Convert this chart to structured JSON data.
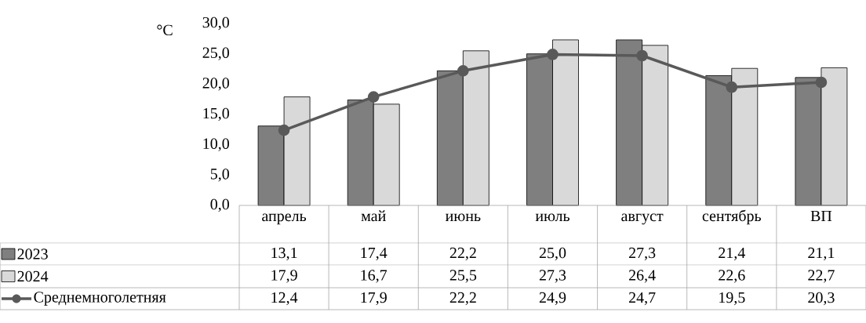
{
  "chart_data": {
    "type": "bar",
    "ylabel": "°C",
    "categories": [
      "апрель",
      "май",
      "июнь",
      "июль",
      "август",
      "сентябрь",
      "ВП"
    ],
    "series": [
      {
        "name": "2023",
        "color": "#7f7f7f",
        "values": [
          13.1,
          17.4,
          22.2,
          25.0,
          27.3,
          21.4,
          21.1
        ],
        "value_labels": [
          "13,1",
          "17,4",
          "22,2",
          "25,0",
          "27,3",
          "21,4",
          "21,1"
        ]
      },
      {
        "name": "2024",
        "color": "#d9d9d9",
        "values": [
          17.9,
          16.7,
          25.5,
          27.3,
          26.4,
          22.6,
          22.7
        ],
        "value_labels": [
          "17,9",
          "16,7",
          "25,5",
          "27,3",
          "26,4",
          "22,6",
          "22,7"
        ]
      },
      {
        "name": "Среднемноголетняя",
        "type": "line",
        "color": "#595959",
        "marker": "circle",
        "line_style": "solid",
        "values": [
          12.4,
          17.9,
          22.2,
          24.9,
          24.7,
          19.5,
          20.3
        ],
        "value_labels": [
          "12,4",
          "17,9",
          "22,2",
          "24,9",
          "24,7",
          "19,5",
          "20,3"
        ]
      }
    ],
    "ylim": [
      0,
      30
    ],
    "yticks": [
      {
        "value": 0,
        "label": "0,0"
      },
      {
        "value": 5,
        "label": "5,0"
      },
      {
        "value": 10,
        "label": "10,0"
      },
      {
        "value": 15,
        "label": "15,0"
      },
      {
        "value": 20,
        "label": "20,0"
      },
      {
        "value": 25,
        "label": "25,0"
      },
      {
        "value": 30,
        "label": "30,0"
      }
    ],
    "legend": "bottom left"
  }
}
